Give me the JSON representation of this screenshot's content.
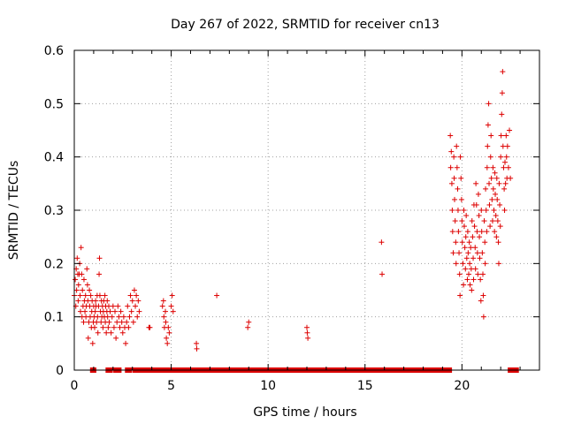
{
  "chart_data": {
    "type": "scatter",
    "title": "Day 267 of 2022, SRMTID for receiver cn13",
    "xlabel": "GPS time / hours",
    "ylabel": "SRMTID / TECUs",
    "xlim": [
      0,
      24
    ],
    "ylim": [
      0,
      0.6
    ],
    "xticks": [
      0,
      5,
      10,
      15,
      20
    ],
    "xtick_labels": [
      "0",
      "5",
      "10",
      "15",
      "20"
    ],
    "yticks": [
      0,
      0.1,
      0.2,
      0.3,
      0.4,
      0.5,
      0.6
    ],
    "ytick_labels": [
      "0",
      "0.1",
      "0.2",
      "0.3",
      "0.4",
      "0.5",
      "0.6"
    ],
    "grid": true,
    "marker": "+",
    "color": "#dd0000",
    "series": [
      {
        "name": "SRMTID",
        "points": [
          [
            0.0,
            0.14
          ],
          [
            0.05,
            0.17
          ],
          [
            0.08,
            0.12
          ],
          [
            0.1,
            0.19
          ],
          [
            0.12,
            0.15
          ],
          [
            0.15,
            0.21
          ],
          [
            0.18,
            0.18
          ],
          [
            0.2,
            0.13
          ],
          [
            0.22,
            0.16
          ],
          [
            0.25,
            0.18
          ],
          [
            0.28,
            0.2
          ],
          [
            0.3,
            0.14
          ],
          [
            0.32,
            0.11
          ],
          [
            0.35,
            0.23
          ],
          [
            0.38,
            0.18
          ],
          [
            0.4,
            0.1
          ],
          [
            0.42,
            0.15
          ],
          [
            0.45,
            0.12
          ],
          [
            0.48,
            0.09
          ],
          [
            0.5,
            0.17
          ],
          [
            0.52,
            0.13
          ],
          [
            0.55,
            0.11
          ],
          [
            0.58,
            0.14
          ],
          [
            0.6,
            0.1
          ],
          [
            0.62,
            0.12
          ],
          [
            0.65,
            0.19
          ],
          [
            0.68,
            0.16
          ],
          [
            0.7,
            0.13
          ],
          [
            0.72,
            0.06
          ],
          [
            0.75,
            0.09
          ],
          [
            0.78,
            0.15
          ],
          [
            0.8,
            0.12
          ],
          [
            0.82,
            0.1
          ],
          [
            0.85,
            0.14
          ],
          [
            0.88,
            0.08
          ],
          [
            0.9,
            0.11
          ],
          [
            0.92,
            0.13
          ],
          [
            0.95,
            0.05
          ],
          [
            0.98,
            0.09
          ],
          [
            1.0,
            0.12
          ],
          [
            1.02,
            0.1
          ],
          [
            1.05,
            0.08
          ],
          [
            1.08,
            0.11
          ],
          [
            1.1,
            0.13
          ],
          [
            1.12,
            0.12
          ],
          [
            1.15,
            0.09
          ],
          [
            1.18,
            0.14
          ],
          [
            1.2,
            0.1
          ],
          [
            1.22,
            0.07
          ],
          [
            1.25,
            0.12
          ],
          [
            1.28,
            0.18
          ],
          [
            1.3,
            0.21
          ],
          [
            1.32,
            0.14
          ],
          [
            1.35,
            0.11
          ],
          [
            1.38,
            0.09
          ],
          [
            1.4,
            0.13
          ],
          [
            1.42,
            0.1
          ],
          [
            1.45,
            0.12
          ],
          [
            1.48,
            0.08
          ],
          [
            1.5,
            0.11
          ],
          [
            1.52,
            0.13
          ],
          [
            1.55,
            0.1
          ],
          [
            1.58,
            0.14
          ],
          [
            1.6,
            0.09
          ],
          [
            1.62,
            0.12
          ],
          [
            1.65,
            0.07
          ],
          [
            1.68,
            0.11
          ],
          [
            1.7,
            0.13
          ],
          [
            1.72,
            0.1
          ],
          [
            1.75,
            0.08
          ],
          [
            1.78,
            0.12
          ],
          [
            1.8,
            0.09
          ],
          [
            1.85,
            0.11
          ],
          [
            1.9,
            0.07
          ],
          [
            1.95,
            0.1
          ],
          [
            2.0,
            0.12
          ],
          [
            2.05,
            0.08
          ],
          [
            2.1,
            0.11
          ],
          [
            2.15,
            0.06
          ],
          [
            2.2,
            0.09
          ],
          [
            2.25,
            0.12
          ],
          [
            2.3,
            0.1
          ],
          [
            2.35,
            0.08
          ],
          [
            2.4,
            0.11
          ],
          [
            2.45,
            0.09
          ],
          [
            2.5,
            0.07
          ],
          [
            2.55,
            0.1
          ],
          [
            2.6,
            0.08
          ],
          [
            2.65,
            0.05
          ],
          [
            2.7,
            0.09
          ],
          [
            2.75,
            0.12
          ],
          [
            2.8,
            0.08
          ],
          [
            2.85,
            0.1
          ],
          [
            2.9,
            0.14
          ],
          [
            2.95,
            0.11
          ],
          [
            3.0,
            0.13
          ],
          [
            3.05,
            0.09
          ],
          [
            3.1,
            0.15
          ],
          [
            3.15,
            0.12
          ],
          [
            3.2,
            0.14
          ],
          [
            3.25,
            0.1
          ],
          [
            3.3,
            0.13
          ],
          [
            3.35,
            0.11
          ],
          [
            3.85,
            0.08
          ],
          [
            3.9,
            0.08
          ],
          [
            4.55,
            0.12
          ],
          [
            4.6,
            0.13
          ],
          [
            4.62,
            0.1
          ],
          [
            4.65,
            0.08
          ],
          [
            4.7,
            0.11
          ],
          [
            4.72,
            0.09
          ],
          [
            4.75,
            0.06
          ],
          [
            4.8,
            0.05
          ],
          [
            4.85,
            0.08
          ],
          [
            4.9,
            0.07
          ],
          [
            5.0,
            0.12
          ],
          [
            5.05,
            0.14
          ],
          [
            5.1,
            0.11
          ],
          [
            6.3,
            0.05
          ],
          [
            6.32,
            0.04
          ],
          [
            7.35,
            0.14
          ],
          [
            8.95,
            0.08
          ],
          [
            9.0,
            0.09
          ],
          [
            12.0,
            0.08
          ],
          [
            12.02,
            0.07
          ],
          [
            12.05,
            0.06
          ],
          [
            15.85,
            0.24
          ],
          [
            15.88,
            0.18
          ],
          [
            19.4,
            0.44
          ],
          [
            19.42,
            0.38
          ],
          [
            19.45,
            0.41
          ],
          [
            19.48,
            0.35
          ],
          [
            19.5,
            0.3
          ],
          [
            19.52,
            0.26
          ],
          [
            19.55,
            0.22
          ],
          [
            19.58,
            0.4
          ],
          [
            19.6,
            0.36
          ],
          [
            19.62,
            0.32
          ],
          [
            19.65,
            0.28
          ],
          [
            19.68,
            0.24
          ],
          [
            19.7,
            0.2
          ],
          [
            19.72,
            0.42
          ],
          [
            19.75,
            0.38
          ],
          [
            19.78,
            0.34
          ],
          [
            19.8,
            0.3
          ],
          [
            19.82,
            0.26
          ],
          [
            19.85,
            0.22
          ],
          [
            19.88,
            0.18
          ],
          [
            19.9,
            0.14
          ],
          [
            19.92,
            0.4
          ],
          [
            19.95,
            0.36
          ],
          [
            19.98,
            0.32
          ],
          [
            20.0,
            0.28
          ],
          [
            20.02,
            0.24
          ],
          [
            20.05,
            0.2
          ],
          [
            20.08,
            0.16
          ],
          [
            20.1,
            0.3
          ],
          [
            20.12,
            0.27
          ],
          [
            20.15,
            0.23
          ],
          [
            20.18,
            0.19
          ],
          [
            20.2,
            0.25
          ],
          [
            20.22,
            0.29
          ],
          [
            20.25,
            0.21
          ],
          [
            20.28,
            0.17
          ],
          [
            20.3,
            0.26
          ],
          [
            20.32,
            0.22
          ],
          [
            20.35,
            0.18
          ],
          [
            20.38,
            0.24
          ],
          [
            20.4,
            0.2
          ],
          [
            20.42,
            0.16
          ],
          [
            20.45,
            0.23
          ],
          [
            20.48,
            0.19
          ],
          [
            20.5,
            0.15
          ],
          [
            20.52,
            0.28
          ],
          [
            20.55,
            0.25
          ],
          [
            20.58,
            0.21
          ],
          [
            20.6,
            0.17
          ],
          [
            20.62,
            0.31
          ],
          [
            20.65,
            0.27
          ],
          [
            20.68,
            0.23
          ],
          [
            20.7,
            0.19
          ],
          [
            20.72,
            0.35
          ],
          [
            20.75,
            0.31
          ],
          [
            20.78,
            0.26
          ],
          [
            20.8,
            0.22
          ],
          [
            20.82,
            0.18
          ],
          [
            20.85,
            0.33
          ],
          [
            20.88,
            0.29
          ],
          [
            20.9,
            0.25
          ],
          [
            20.92,
            0.21
          ],
          [
            20.95,
            0.17
          ],
          [
            20.98,
            0.13
          ],
          [
            21.0,
            0.3
          ],
          [
            21.02,
            0.26
          ],
          [
            21.05,
            0.22
          ],
          [
            21.08,
            0.18
          ],
          [
            21.1,
            0.14
          ],
          [
            21.12,
            0.1
          ],
          [
            21.15,
            0.28
          ],
          [
            21.18,
            0.24
          ],
          [
            21.2,
            0.2
          ],
          [
            21.22,
            0.34
          ],
          [
            21.25,
            0.3
          ],
          [
            21.28,
            0.26
          ],
          [
            21.3,
            0.38
          ],
          [
            21.32,
            0.42
          ],
          [
            21.35,
            0.46
          ],
          [
            21.38,
            0.5
          ],
          [
            21.4,
            0.35
          ],
          [
            21.42,
            0.31
          ],
          [
            21.45,
            0.27
          ],
          [
            21.48,
            0.4
          ],
          [
            21.5,
            0.44
          ],
          [
            21.52,
            0.36
          ],
          [
            21.55,
            0.32
          ],
          [
            21.58,
            0.28
          ],
          [
            21.6,
            0.38
          ],
          [
            21.62,
            0.34
          ],
          [
            21.65,
            0.3
          ],
          [
            21.68,
            0.26
          ],
          [
            21.7,
            0.37
          ],
          [
            21.72,
            0.33
          ],
          [
            21.75,
            0.29
          ],
          [
            21.78,
            0.25
          ],
          [
            21.8,
            0.36
          ],
          [
            21.82,
            0.32
          ],
          [
            21.85,
            0.28
          ],
          [
            21.88,
            0.24
          ],
          [
            21.9,
            0.2
          ],
          [
            21.92,
            0.35
          ],
          [
            21.95,
            0.31
          ],
          [
            21.98,
            0.27
          ],
          [
            22.0,
            0.4
          ],
          [
            22.02,
            0.44
          ],
          [
            22.05,
            0.48
          ],
          [
            22.08,
            0.52
          ],
          [
            22.1,
            0.56
          ],
          [
            22.12,
            0.42
          ],
          [
            22.15,
            0.38
          ],
          [
            22.18,
            0.34
          ],
          [
            22.2,
            0.3
          ],
          [
            22.22,
            0.39
          ],
          [
            22.25,
            0.35
          ],
          [
            22.28,
            0.44
          ],
          [
            22.3,
            0.4
          ],
          [
            22.32,
            0.36
          ],
          [
            22.35,
            0.42
          ],
          [
            22.4,
            0.38
          ],
          [
            22.45,
            0.45
          ],
          [
            22.5,
            0.36
          ]
        ],
        "zero_segments": [
          [
            0.95,
            1.0
          ],
          [
            1.75,
            1.85
          ],
          [
            2.15,
            2.3
          ],
          [
            2.75,
            2.85
          ],
          [
            3.15,
            19.35
          ],
          [
            22.5,
            22.8
          ]
        ]
      }
    ]
  }
}
